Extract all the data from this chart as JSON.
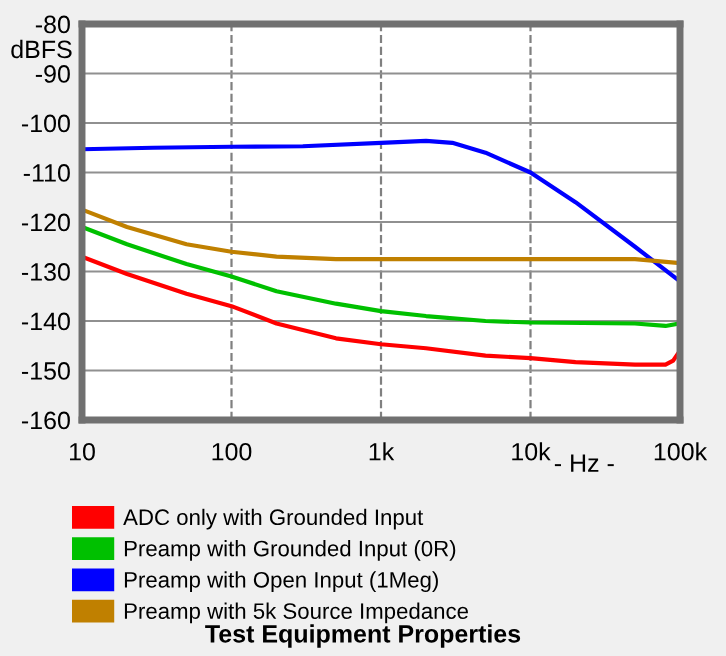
{
  "chart_data": {
    "type": "line",
    "title": "Test Equipment Properties",
    "xlabel": "- Hz -",
    "ylabel": "dBFS",
    "log": "x",
    "xlim": [
      10,
      100000
    ],
    "ylim": [
      -160,
      -80
    ],
    "xticks": [
      10,
      100,
      {
        "value": 1000,
        "label": "1k"
      },
      {
        "value": 10000,
        "label": "10k"
      },
      {
        "value": 100000,
        "label": "100k"
      }
    ],
    "yticks": [
      -160,
      -150,
      -140,
      -130,
      -120,
      -110,
      -100,
      -90,
      -80
    ],
    "grid": true,
    "legend": "bottom",
    "marker": "none",
    "line_style": "solid",
    "series": [
      {
        "name": "ADC only with Grounded Input",
        "color": "#ff0000",
        "x": [
          10,
          20,
          50,
          100,
          200,
          500,
          1000,
          2000,
          5000,
          10000,
          20000,
          50000,
          80000,
          90000,
          100000
        ],
        "values": [
          -127,
          -130.5,
          -134.5,
          -137,
          -140.5,
          -143.5,
          -144.7,
          -145.5,
          -147,
          -147.5,
          -148.3,
          -148.8,
          -148.8,
          -148,
          -146
        ]
      },
      {
        "name": "Preamp with Grounded Input (0R)",
        "color": "#00c000",
        "x": [
          10,
          20,
          50,
          100,
          200,
          500,
          1000,
          2000,
          5000,
          10000,
          50000,
          80000,
          100000
        ],
        "values": [
          -121,
          -124.5,
          -128.5,
          -131,
          -134,
          -136.5,
          -138,
          -139,
          -140,
          -140.3,
          -140.5,
          -141,
          -140.5
        ]
      },
      {
        "name": "Preamp with Open Input (1Meg)",
        "color": "#0000ff",
        "x": [
          10,
          30,
          100,
          300,
          1000,
          2000,
          3000,
          5000,
          10000,
          20000,
          50000,
          100000
        ],
        "values": [
          -105.3,
          -105,
          -104.8,
          -104.7,
          -104,
          -103.6,
          -104,
          -106,
          -110,
          -116,
          -125,
          -132
        ]
      },
      {
        "name": "Preamp with 5k Source Impedance",
        "color": "#c08000",
        "x": [
          10,
          20,
          50,
          100,
          200,
          500,
          1000,
          10000,
          50000,
          100000
        ],
        "values": [
          -117.5,
          -121,
          -124.5,
          -126,
          -127,
          -127.5,
          -127.5,
          -127.5,
          -127.5,
          -128.3
        ]
      }
    ]
  }
}
